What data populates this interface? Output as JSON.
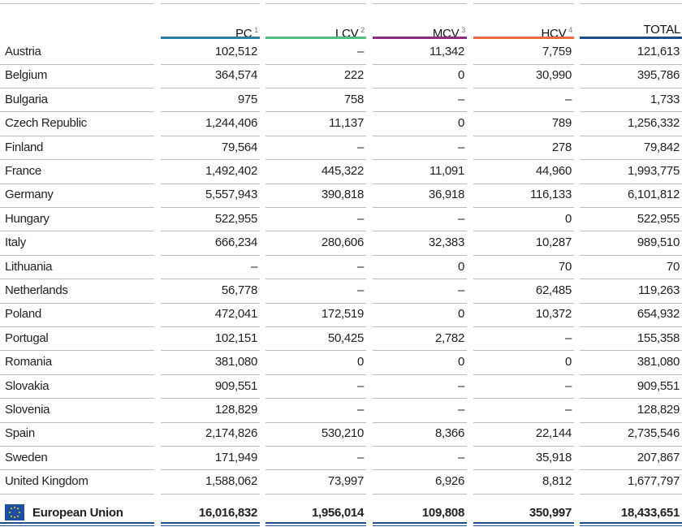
{
  "table": {
    "header": [
      {
        "label": "PC",
        "note": "1"
      },
      {
        "label": "LCV",
        "note": "2"
      },
      {
        "label": "MCV",
        "note": "3"
      },
      {
        "label": "HCV",
        "note": "4"
      },
      {
        "label": "TOTAL"
      }
    ],
    "rows": [
      [
        "Austria",
        "102,512",
        "–",
        "11,342",
        "7,759",
        "121,613"
      ],
      [
        "Belgium",
        "364,574",
        "222",
        "0",
        "30,990",
        "395,786"
      ],
      [
        "Bulgaria",
        "975",
        "758",
        "–",
        "–",
        "1,733"
      ],
      [
        "Czech Republic",
        "1,244,406",
        "11,137",
        "0",
        "789",
        "1,256,332"
      ],
      [
        "Finland",
        "79,564",
        "–",
        "–",
        "278",
        "79,842"
      ],
      [
        "France",
        "1,492,402",
        "445,322",
        "11,091",
        "44,960",
        "1,993,775"
      ],
      [
        "Germany",
        "5,557,943",
        "390,818",
        "36,918",
        "116,133",
        "6,101,812"
      ],
      [
        "Hungary",
        "522,955",
        "–",
        "–",
        "0",
        "522,955"
      ],
      [
        "Italy",
        "666,234",
        "280,606",
        "32,383",
        "10,287",
        "989,510"
      ],
      [
        "Lithuania",
        "–",
        "–",
        "0",
        "70",
        "70"
      ],
      [
        "Netherlands",
        "56,778",
        "–",
        "–",
        "62,485",
        "119,263"
      ],
      [
        "Poland",
        "472,041",
        "172,519",
        "0",
        "10,372",
        "654,932"
      ],
      [
        "Portugal",
        "102,151",
        "50,425",
        "2,782",
        "–",
        "155,358"
      ],
      [
        "Romania",
        "381,080",
        "0",
        "0",
        "0",
        "381,080"
      ],
      [
        "Slovakia",
        "909,551",
        "–",
        "–",
        "–",
        "909,551"
      ],
      [
        "Slovenia",
        "128,829",
        "–",
        "–",
        "–",
        "128,829"
      ],
      [
        "Spain",
        "2,174,826",
        "530,210",
        "8,366",
        "22,144",
        "2,735,546"
      ],
      [
        "Sweden",
        "171,949",
        "–",
        "–",
        "35,918",
        "207,867"
      ],
      [
        "United Kingdom",
        "1,588,062",
        "73,997",
        "6,926",
        "8,812",
        "1,677,797"
      ]
    ],
    "footer": [
      "European Union",
      "16,016,832",
      "1,956,014",
      "109,808",
      "350,997",
      "18,433,651"
    ]
  }
}
